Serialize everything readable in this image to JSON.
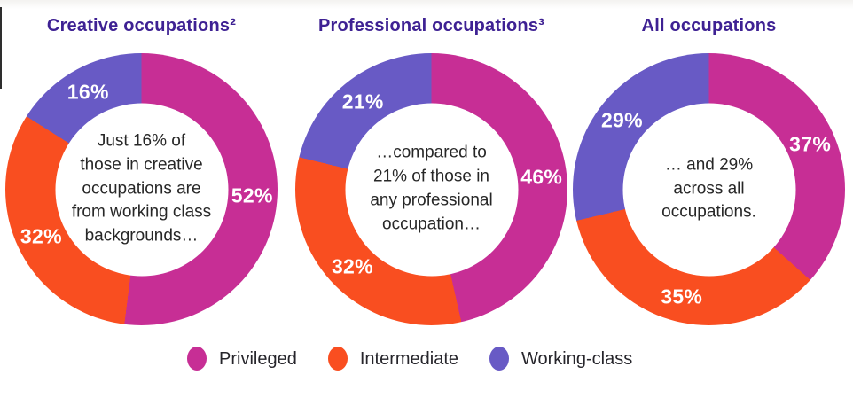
{
  "colors": {
    "privileged": "#c72e95",
    "intermediate": "#f94e20",
    "working_class": "#685ac5",
    "title_text": "#3e2193",
    "body_text": "#272727",
    "percent_text": "#ffffff",
    "legend_text": "#26252b",
    "background": "#ffffff",
    "top_strip": "#f3f2f0"
  },
  "chart_data": [
    {
      "type": "pie",
      "subtype": "donut",
      "title": "Creative occupations²",
      "labels": [
        "Privileged",
        "Intermediate",
        "Working-class"
      ],
      "values": [
        52,
        32,
        16
      ],
      "value_labels": [
        "52%",
        "32%",
        "16%"
      ],
      "color_keys": [
        "privileged",
        "intermediate",
        "working_class"
      ],
      "start_angle_deg": 0,
      "direction": "clockwise",
      "annotation": "Just 16% of those in creative occupations are from working class backgrounds…",
      "annotation_lines": [
        "Just 16% of",
        "those in creative",
        "occupations are",
        "from working class",
        "backgrounds…"
      ]
    },
    {
      "type": "pie",
      "subtype": "donut",
      "title": "Professional occupations³",
      "labels": [
        "Privileged",
        "Intermediate",
        "Working-class"
      ],
      "values": [
        46,
        32,
        21
      ],
      "value_labels": [
        "46%",
        "32%",
        "21%"
      ],
      "color_keys": [
        "privileged",
        "intermediate",
        "working_class"
      ],
      "start_angle_deg": 0,
      "direction": "clockwise",
      "annotation": "…compared to 21% of those in any professional occupation…",
      "annotation_lines": [
        "…compared to",
        "21% of those in",
        "any professional",
        "occupation…"
      ]
    },
    {
      "type": "pie",
      "subtype": "donut",
      "title": "All occupations",
      "labels": [
        "Privileged",
        "Intermediate",
        "Working-class"
      ],
      "values": [
        37,
        35,
        29
      ],
      "value_labels": [
        "37%",
        "35%",
        "29%"
      ],
      "color_keys": [
        "privileged",
        "intermediate",
        "working_class"
      ],
      "start_angle_deg": 0,
      "direction": "clockwise",
      "annotation": "… and 29% across all occupations.",
      "annotation_lines": [
        "… and 29%",
        "across all",
        "occupations."
      ]
    }
  ],
  "legend": {
    "items": [
      {
        "label": "Privileged",
        "color_key": "privileged",
        "color": "#c72e95"
      },
      {
        "label": "Intermediate",
        "color_key": "intermediate",
        "color": "#f94e20"
      },
      {
        "label": "Working-class",
        "color_key": "working_class",
        "color": "#685ac5"
      }
    ]
  }
}
